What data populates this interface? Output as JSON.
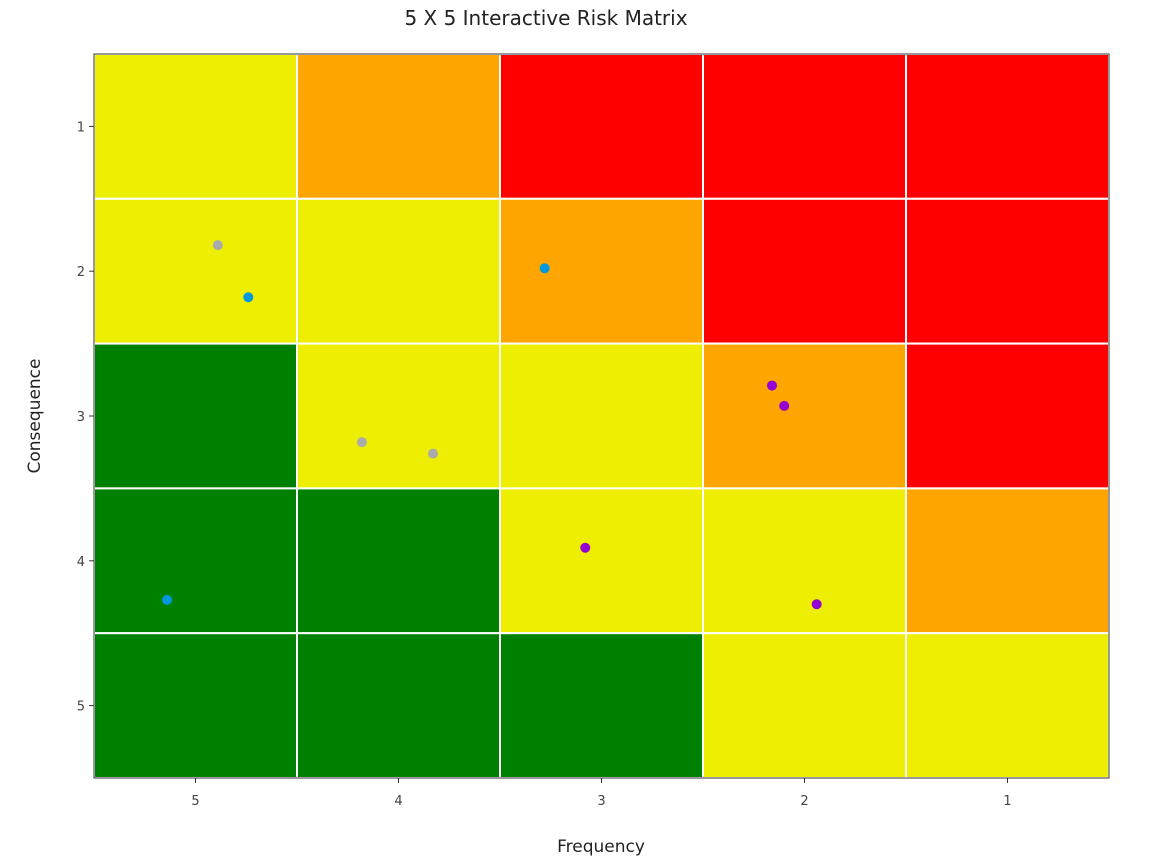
{
  "chart_data": {
    "type": "heatmap",
    "title": "5 X 5 Interactive Risk Matrix",
    "xlabel": "Frequency",
    "ylabel": "Consequence",
    "x_categories": [
      "5",
      "4",
      "3",
      "2",
      "1"
    ],
    "y_categories": [
      "1",
      "2",
      "3",
      "4",
      "5"
    ],
    "x_range": [
      5.5,
      0.5
    ],
    "y_range": [
      0.5,
      5.5
    ],
    "colors": {
      "green": "#008000",
      "yellow": "#eeee00",
      "orange": "#ffa500",
      "red": "#ff0000",
      "grid_line": "#ffffff",
      "point_gray": "#aaaaaa",
      "point_blue": "#0099dd",
      "point_purple": "#9400d3"
    },
    "cells": [
      [
        "yellow",
        "orange",
        "red",
        "red",
        "red"
      ],
      [
        "yellow",
        "yellow",
        "orange",
        "red",
        "red"
      ],
      [
        "green",
        "yellow",
        "yellow",
        "orange",
        "red"
      ],
      [
        "green",
        "green",
        "yellow",
        "yellow",
        "orange"
      ],
      [
        "green",
        "green",
        "green",
        "yellow",
        "yellow"
      ]
    ],
    "points": [
      {
        "frequency": 4.89,
        "consequence": 1.82,
        "color": "gray"
      },
      {
        "frequency": 4.74,
        "consequence": 2.18,
        "color": "blue"
      },
      {
        "frequency": 3.28,
        "consequence": 1.98,
        "color": "blue"
      },
      {
        "frequency": 2.16,
        "consequence": 2.79,
        "color": "purple"
      },
      {
        "frequency": 2.1,
        "consequence": 2.93,
        "color": "purple"
      },
      {
        "frequency": 4.18,
        "consequence": 3.18,
        "color": "gray"
      },
      {
        "frequency": 3.83,
        "consequence": 3.26,
        "color": "gray"
      },
      {
        "frequency": 3.08,
        "consequence": 3.91,
        "color": "purple"
      },
      {
        "frequency": 5.14,
        "consequence": 4.27,
        "color": "blue"
      },
      {
        "frequency": 1.94,
        "consequence": 4.3,
        "color": "purple"
      }
    ],
    "grid": true,
    "legend": "none"
  }
}
